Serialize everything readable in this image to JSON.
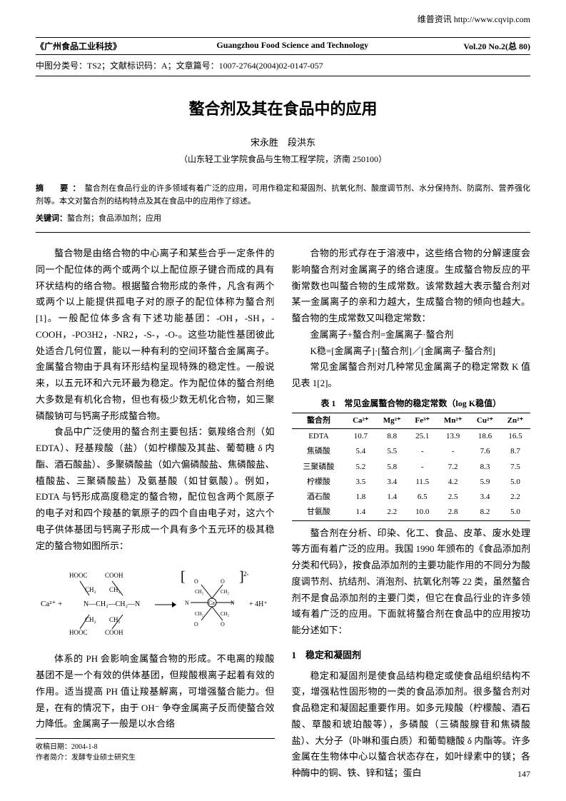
{
  "top_link": "维普资讯 http://www.cqvip.com",
  "header": {
    "journal_cn": "《广州食品工业科技》",
    "journal_en": "Guangzhou Food Science and Technology",
    "volume": "Vol.20 No.2(总 80)"
  },
  "classification": "中图分类号：TS2；文献标识码：A；文章篇号：1007-2764(2004)02-0147-057",
  "title": "螯合剂及其在食品中的应用",
  "authors": "宋永胜　段洪东",
  "affiliation": "（山东轻工业学院食品与生物工程学院，济南 250100）",
  "abstract_label": "摘　要：",
  "abstract_text": "螯合剂在食品行业的许多领域有着广泛的应用，可用作稳定和凝固剂、抗氧化剂、酸度调节剂、水分保持剂、防腐剂、营养强化剂等。本文对螯合剂的结构特点及其在食品中的应用作了综述。",
  "keywords_label": "关键词：",
  "keywords_text": "螯合剂；食品添加剂；应用",
  "left_column": {
    "p1": "螯合物是由络合物的中心离子和某些合乎一定条件的同一个配位体的两个或两个以上配位原子键合而成的具有环状结构的络合物。根据螯合物形成的条件，凡含有两个或两个以上能提供孤电子对的原子的配位体称为螯合剂[1]。一般配位体多含有下述功能基团：-OH，-SH，-COOH，-PO3H2，-NR2，-S-，-O-。这些功能性基团彼此处适合几何位置，能以一种有利的空间环螯合金属离子。金属螯合物由于具有环形结构呈现特殊的稳定性。一般说来，以五元环和六元环最为稳定。作为配位体的螯合剂绝大多数是有机化合物，但也有极少数无机化合物，如三聚磷酸钠可与钙离子形成螯合物。",
    "p2": "食品中广泛使用的螯合剂主要包括：氨羧络合剂（如 EDTA）、羟基羧酸（盐）（如柠檬酸及其盐、葡萄糖 δ 内酯、酒石酸盐）、多聚磷酸盐（如六偏磷酸盐、焦磷酸盐、植酸盐、三聚磷酸盐）及氨基酸（如甘氨酸）。例如，EDTA 与钙形成高度稳定的螯合物，配位包含两个氮原子的电子对和四个羧基的氧原子的四个自由电子对，这六个电子供体基团与钙离子形成一个具有多个五元环的极其稳定的螯合物如图所示：",
    "p3": "体系的 PH 会影响金属螯合物的形成。不电离的羧酸基团不是一个有效的供体基团，但羧酸根离子起着有效的作用。适当提高 PH 值让羧基解离，可增强螯合能力。但是，在有的情况下，由于 OH⁻ 争夺金属离子反而使螯合效力降低。金属离子一般是以水合络",
    "diagram_label_left": "Ca²⁺ +",
    "diagram_label_right": "+ 4H⁺",
    "footnote1": "收稿日期：2004-1-8",
    "footnote2": "作者简介：发酵专业硕士研究生"
  },
  "right_column": {
    "p1": "合物的形式存在于溶液中，这些络合物的分解速度会影响螯合剂对金属离子的络合速度。生成螯合物反应的平衡常数也叫螯合物的生成常数。该常数越大表示螯合剂对某一金属离子的亲和力越大，生成螯合物的倾向也越大。螯合物的生成常数又叫稳定常数：",
    "eq1": "金属离子+螯合剂=金属离子·螯合剂",
    "eq2": "K稳=[金属离子]·[螯合剂]／[金属离子·螯合剂]",
    "p2": "常见金属螯合剂对几种常见金属离子的稳定常数 K 值见表 1[2]。",
    "table_caption": "表 1　常见金属螯合物的稳定常数（log K稳值）",
    "table": {
      "headers": [
        "螯合剂",
        "Ca²⁺",
        "Mg²⁺",
        "Fe³⁺",
        "Mn²⁺",
        "Cu²⁺",
        "Zn²⁺"
      ],
      "rows": [
        [
          "EDTA",
          "10.7",
          "8.8",
          "25.1",
          "13.9",
          "18.6",
          "16.5"
        ],
        [
          "焦磷酸",
          "5.4",
          "5.5",
          "-",
          "-",
          "7.6",
          "8.7"
        ],
        [
          "三聚磷酸",
          "5.2",
          "5.8",
          "-",
          "7.2",
          "8.3",
          "7.5"
        ],
        [
          "柠檬酸",
          "3.5",
          "3.4",
          "11.5",
          "4.2",
          "5.9",
          "5.0"
        ],
        [
          "酒石酸",
          "1.8",
          "1.4",
          "6.5",
          "2.5",
          "3.4",
          "2.2"
        ],
        [
          "甘氨酸",
          "1.4",
          "2.2",
          "10.0",
          "2.8",
          "8.2",
          "5.0"
        ]
      ]
    },
    "p3": "螯合剂在分析、印染、化工、食品、皮革、废水处理等方面有着广泛的应用。我国 1990 年颁布的《食品添加剂分类和代码》，按食品添加剂的主要功能作用的不同分为酸度调节剂、抗结剂、消泡剂、抗氧化剂等 22 类，虽然螯合剂不是食品添加剂的主要门类，但它在食品行业的许多领域有着广泛的应用。下面就将螯合剂在食品中的应用按功能分述如下：",
    "section1_title": "1　稳定和凝固剂",
    "p4": "稳定和凝固剂是使食品结构稳定或使食品组织结构不变，增强粘性固形物的一类的食品添加剂。很多螯合剂对食品稳定和凝固起重要作用。如多元羧酸（柠檬酸、酒石酸、草酸和琥珀酸等），多磷酸（三磷酸腺苷和焦磷酸盐）、大分子（卟啉和蛋白质）和葡萄糖酸 δ 内酯等。许多金属在生物体中心以螯合状态存在，如叶绿素中的镁；各种酶中的铜、铁、锌和锰；蛋白"
  },
  "page_number": "147"
}
